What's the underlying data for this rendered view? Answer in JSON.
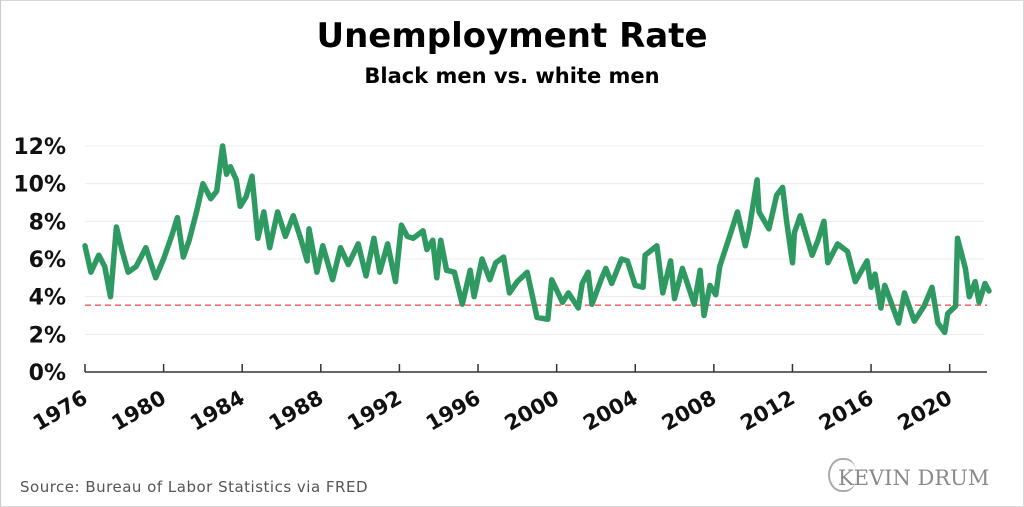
{
  "chart_data": {
    "type": "line",
    "title": "Unemployment Rate",
    "subtitle": "Black men vs. white men",
    "xlabel": "",
    "ylabel": "",
    "xlim": [
      1976,
      2022
    ],
    "ylim": [
      0,
      12
    ],
    "x_ticks": [
      1976,
      1980,
      1984,
      1988,
      1992,
      1996,
      2000,
      2004,
      2008,
      2012,
      2016,
      2020
    ],
    "x_tick_labels": [
      "1976",
      "1980",
      "1984",
      "1988",
      "1992",
      "1996",
      "2000",
      "2004",
      "2008",
      "2012",
      "2016",
      "2020"
    ],
    "y_ticks": [
      0,
      2,
      4,
      6,
      8,
      10,
      12
    ],
    "y_tick_labels": [
      "0%",
      "2%",
      "4%",
      "6%",
      "8%",
      "10%",
      "12%"
    ],
    "grid": "horizontal",
    "reference_line": {
      "value": 3.55,
      "style": "dashed",
      "color": "#f07070"
    },
    "series": [
      {
        "color": "#2e9a62",
        "x": [
          1976.0,
          1976.3,
          1976.7,
          1977.0,
          1977.3,
          1977.6,
          1977.9,
          1978.2,
          1978.6,
          1979.1,
          1979.6,
          1980.0,
          1980.4,
          1980.7,
          1981.0,
          1981.3,
          1981.7,
          1982.0,
          1982.4,
          1982.7,
          1983.0,
          1983.2,
          1983.4,
          1983.7,
          1983.9,
          1984.2,
          1984.5,
          1984.8,
          1985.1,
          1985.4,
          1985.8,
          1986.2,
          1986.6,
          1987.0,
          1987.3,
          1987.4,
          1987.8,
          1988.1,
          1988.6,
          1989.0,
          1989.4,
          1989.9,
          1990.3,
          1990.7,
          1991.0,
          1991.4,
          1991.8,
          1992.1,
          1992.4,
          1992.7,
          1993.2,
          1993.4,
          1993.7,
          1993.9,
          1994.1,
          1994.4,
          1994.8,
          1995.2,
          1995.6,
          1995.8,
          1996.2,
          1996.6,
          1996.9,
          1997.3,
          1997.6,
          1998.0,
          1998.5,
          1999.0,
          1999.55,
          1999.75,
          2000.3,
          2000.6,
          2001.1,
          2001.3,
          2001.6,
          2001.8,
          2002.3,
          2002.5,
          2002.8,
          2003.3,
          2003.6,
          2004.0,
          2004.4,
          2004.5,
          2005.1,
          2005.4,
          2005.8,
          2006.0,
          2006.4,
          2007.0,
          2007.3,
          2007.5,
          2007.8,
          2008.1,
          2008.3,
          2008.8,
          2009.2,
          2009.6,
          2009.8,
          2010.2,
          2010.3,
          2010.8,
          2011.2,
          2011.5,
          2011.7,
          2012.0,
          2012.1,
          2012.4,
          2013.0,
          2013.3,
          2013.6,
          2013.8,
          2014.3,
          2014.8,
          2015.2,
          2015.8,
          2016.0,
          2016.2,
          2016.5,
          2016.7,
          2017.4,
          2017.7,
          2018.2,
          2018.7,
          2019.1,
          2019.4,
          2019.75,
          2019.9,
          2020.3,
          2020.4,
          2020.8,
          2021.0,
          2021.3,
          2021.5,
          2021.8,
          2022.0
        ],
        "y": [
          6.7,
          5.3,
          6.2,
          5.6,
          4.0,
          7.7,
          6.4,
          5.3,
          5.6,
          6.6,
          5.0,
          6.0,
          7.2,
          8.2,
          6.1,
          7.0,
          8.6,
          10.0,
          9.2,
          9.6,
          12.0,
          10.5,
          10.9,
          10.2,
          8.8,
          9.3,
          10.4,
          7.1,
          8.5,
          6.6,
          8.5,
          7.2,
          8.3,
          7.0,
          5.9,
          7.6,
          5.3,
          6.7,
          4.9,
          6.6,
          5.7,
          6.8,
          5.1,
          7.1,
          5.3,
          6.8,
          4.8,
          7.8,
          7.2,
          7.1,
          7.5,
          6.5,
          7.0,
          5.0,
          7.0,
          5.4,
          5.3,
          3.6,
          5.4,
          4.0,
          6.0,
          4.9,
          5.8,
          6.1,
          4.2,
          4.8,
          5.3,
          2.9,
          2.8,
          4.9,
          3.7,
          4.2,
          3.4,
          4.7,
          5.3,
          3.6,
          5.0,
          5.5,
          4.7,
          6.0,
          5.9,
          4.6,
          4.5,
          6.2,
          6.7,
          4.2,
          5.9,
          3.9,
          5.5,
          3.6,
          5.4,
          3.0,
          4.6,
          4.1,
          5.6,
          7.2,
          8.5,
          6.7,
          7.6,
          10.2,
          8.5,
          7.6,
          9.4,
          9.8,
          8.0,
          5.8,
          7.4,
          8.3,
          6.2,
          7.0,
          8.0,
          5.8,
          6.8,
          6.4,
          4.8,
          5.9,
          4.5,
          5.2,
          3.4,
          4.6,
          2.6,
          4.2,
          2.7,
          3.5,
          4.5,
          2.6,
          2.1,
          3.1,
          3.5,
          7.1,
          5.5,
          4.0,
          4.8,
          3.7,
          4.7,
          4.3
        ]
      }
    ],
    "legend": "none"
  },
  "source": "Source: Bureau of Labor Statistics via FRED",
  "logo_text": "KEVIN DRUM",
  "colors": {
    "line": "#2e9a62",
    "reference": "#f07070",
    "grid": "#ebebeb",
    "axis": "#333333"
  }
}
